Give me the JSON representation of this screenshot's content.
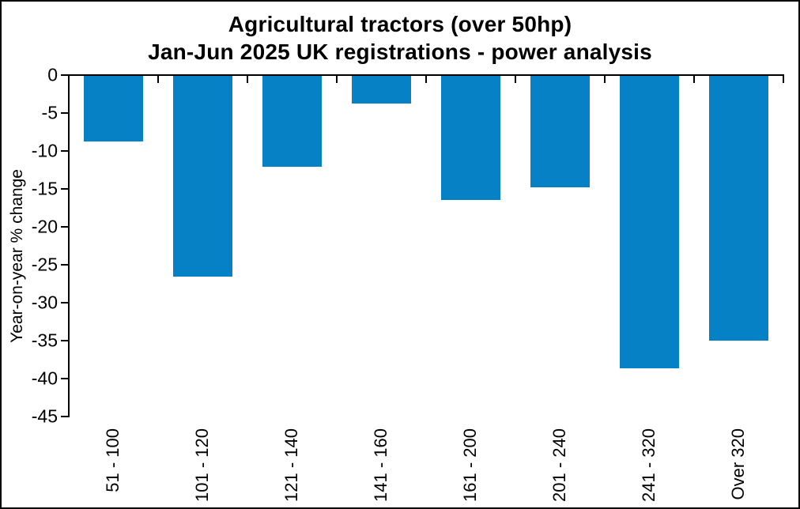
{
  "chart_data": {
    "type": "bar",
    "title": "Agricultural tractors (over 50hp)",
    "subtitle": "Jan-Jun 2025 UK registrations - power analysis",
    "xlabel": "",
    "ylabel": "Year-on-year % change",
    "categories": [
      "51 - 100",
      "101 - 120",
      "121 - 140",
      "141 - 160",
      "161 - 200",
      "201 - 240",
      "241 - 320",
      "Over 320"
    ],
    "values": [
      -8.8,
      -26.6,
      -12.1,
      -3.8,
      -16.5,
      -14.8,
      -38.6,
      -35.0
    ],
    "ylim": [
      -45,
      0
    ],
    "yticks": [
      0,
      -5,
      -10,
      -15,
      -20,
      -25,
      -30,
      -35,
      -40,
      -45
    ],
    "grid": false,
    "legend_position": "none",
    "bar_color": "#0681C5",
    "axis_color": "#000000"
  }
}
